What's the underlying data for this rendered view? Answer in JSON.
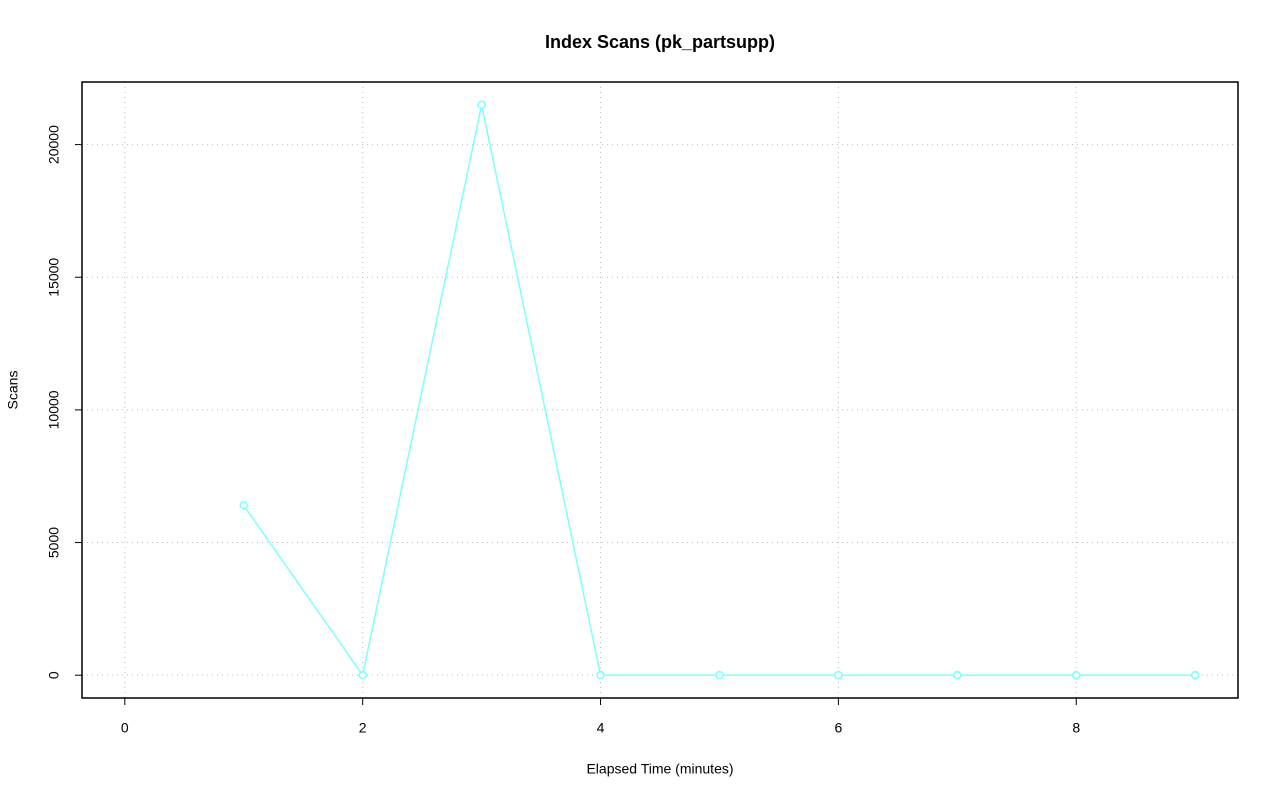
{
  "chart_data": {
    "type": "line",
    "title": "Index Scans (pk_partsupp)",
    "x_label": "Elapsed Time (minutes)",
    "y_label": "Scans",
    "x": [
      1,
      2,
      3,
      4,
      5,
      6,
      7,
      8,
      9
    ],
    "series": [
      {
        "name": "pk_partsupp",
        "color": "#7fffff",
        "values": [
          6400,
          0,
          21500,
          0,
          0,
          0,
          0,
          0,
          0
        ]
      }
    ],
    "xlim": [
      -0.36,
      9.36
    ],
    "xticks": [
      0,
      2,
      4,
      6,
      8
    ],
    "ylim": [
      -860,
      22360
    ],
    "yticks": [
      0,
      5000,
      10000,
      15000,
      20000
    ],
    "grid": true
  }
}
